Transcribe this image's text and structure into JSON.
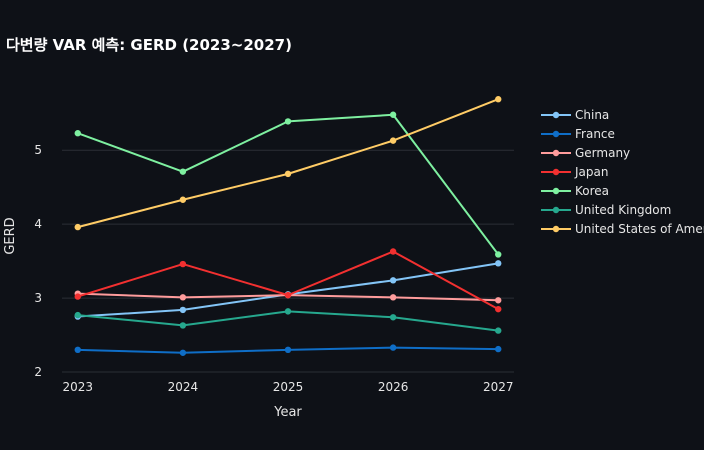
{
  "chart_data": {
    "type": "line",
    "title": "다변량 VAR 예측: GERD (2023~2027)",
    "xlabel": "Year",
    "ylabel": "GERD",
    "x": [
      2023,
      2024,
      2025,
      2026,
      2027
    ],
    "xlim": [
      2022.85,
      2027.15
    ],
    "ylim": [
      2.0,
      5.95
    ],
    "y_ticks": [
      2,
      3,
      4,
      5
    ],
    "grid": true,
    "legend_position": "right",
    "series": [
      {
        "name": "China",
        "color": "#83c5f7",
        "values": [
          2.75,
          2.84,
          3.05,
          3.24,
          3.47
        ]
      },
      {
        "name": "France",
        "color": "#0f6ec7",
        "values": [
          2.3,
          2.26,
          2.3,
          2.33,
          2.31
        ]
      },
      {
        "name": "Germany",
        "color": "#ff9c9c",
        "values": [
          3.06,
          3.01,
          3.04,
          3.01,
          2.97
        ]
      },
      {
        "name": "Japan",
        "color": "#f23030",
        "values": [
          3.02,
          3.46,
          3.04,
          3.63,
          2.85
        ]
      },
      {
        "name": "Korea",
        "color": "#7ef0a0",
        "values": [
          5.23,
          4.71,
          5.39,
          5.48,
          3.59
        ]
      },
      {
        "name": "United Kingdom",
        "color": "#26a88e",
        "values": [
          2.77,
          2.63,
          2.82,
          2.74,
          2.56
        ]
      },
      {
        "name": "United States of America",
        "color": "#ffcc66",
        "values": [
          3.96,
          4.33,
          4.68,
          5.13,
          5.69
        ]
      }
    ]
  }
}
